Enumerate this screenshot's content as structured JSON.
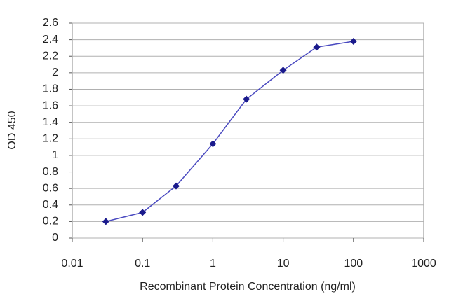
{
  "chart_data": {
    "type": "line",
    "x": [
      0.03,
      0.1,
      0.3,
      1,
      3,
      10,
      30,
      100
    ],
    "series": [
      {
        "color": "#1a1a8c",
        "values": [
          0.2,
          0.31,
          0.63,
          1.14,
          1.68,
          2.03,
          2.31,
          2.38
        ]
      }
    ],
    "xlabel": "Recombinant Protein Concentration (ng/ml)",
    "ylabel": "OD 450",
    "xlim": [
      0.01,
      1000
    ],
    "xticks": [
      0.01,
      0.1,
      1,
      10,
      100,
      1000
    ],
    "xscale": "log",
    "ylim": [
      0,
      2.6
    ],
    "yticks": [
      0,
      0.2,
      0.4,
      0.6,
      0.8,
      1,
      1.2,
      1.4,
      1.6,
      1.8,
      2,
      2.2,
      2.4,
      2.6
    ],
    "grid": true
  }
}
